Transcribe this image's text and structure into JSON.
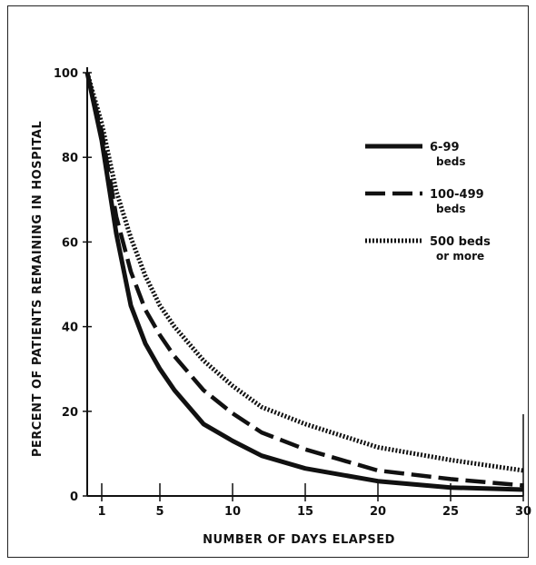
{
  "chart_data": {
    "type": "line",
    "title": "",
    "xlabel": "NUMBER OF DAYS ELAPSED",
    "ylabel": "PERCENT OF PATIENTS REMAINING IN HOSPITAL",
    "xlim": [
      0,
      30
    ],
    "ylim": [
      0,
      100
    ],
    "x_ticks": [
      1,
      5,
      10,
      15,
      20,
      25,
      30
    ],
    "x_tick_labels": [
      "1",
      "5",
      "10",
      "15",
      "20",
      "25",
      "30"
    ],
    "y_ticks": [
      0,
      20,
      40,
      60,
      80,
      100
    ],
    "y_tick_labels": [
      "0",
      "20",
      "40",
      "60",
      "80",
      "100"
    ],
    "grid": false,
    "legend_position": "top-right",
    "series": [
      {
        "name": "6-99 beds",
        "legend_lines": [
          "6-99",
          "beds"
        ],
        "style": "solid",
        "x": [
          0,
          1,
          2,
          3,
          4,
          5,
          6,
          8,
          10,
          12,
          15,
          20,
          25,
          30
        ],
        "y": [
          100,
          84,
          62,
          45,
          36,
          30,
          25,
          17,
          13,
          9.5,
          6.5,
          3.5,
          2,
          1.5
        ]
      },
      {
        "name": "100-499 beds",
        "legend_lines": [
          "100-499",
          "beds"
        ],
        "style": "dashed",
        "x": [
          0,
          1,
          2,
          3,
          4,
          5,
          6,
          8,
          10,
          12,
          15,
          20,
          25,
          30
        ],
        "y": [
          100,
          86,
          66,
          53,
          44,
          38,
          33,
          25,
          19.5,
          15,
          11,
          6,
          4,
          2.5
        ]
      },
      {
        "name": "500 beds or more",
        "legend_lines": [
          "500 beds",
          "or more"
        ],
        "style": "dotted",
        "x": [
          0,
          1,
          2,
          3,
          4,
          5,
          6,
          8,
          10,
          12,
          15,
          20,
          25,
          30
        ],
        "y": [
          100,
          88,
          72,
          61,
          52,
          45,
          40,
          32,
          26,
          21,
          17,
          11.5,
          8.5,
          6
        ]
      }
    ]
  }
}
